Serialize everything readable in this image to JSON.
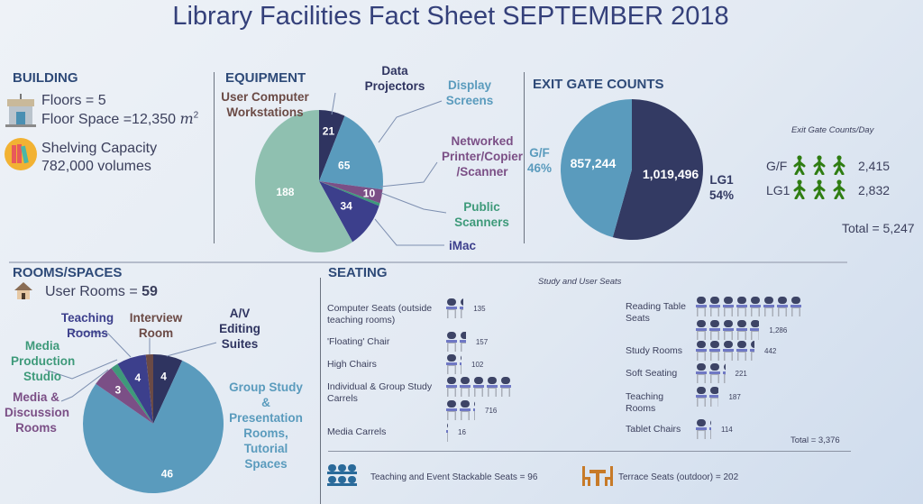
{
  "title": "Library Facilities Fact Sheet SEPTEMBER 2018",
  "building": {
    "heading": "BUILDING",
    "floors": "Floors = 5",
    "floor_space": "Floor Space =12,350 ",
    "floor_unit": "m",
    "floor_exp": "2",
    "shelving": "Shelving Capacity",
    "volumes": "782,000 volumes"
  },
  "equipment": {
    "heading": "EQUIPMENT"
  },
  "exit": {
    "heading": "EXIT GATE COUNTS",
    "per_day_title": "Exit Gate Counts/Day",
    "rows": [
      {
        "label": "G/F",
        "value": "2,415"
      },
      {
        "label": "LG1",
        "value": "2,832"
      }
    ],
    "total": "Total = 5,247",
    "gf_label": "G/F",
    "gf_pct": "46%",
    "lg1_label": "LG1",
    "lg1_pct": "54%"
  },
  "rooms": {
    "heading": "ROOMS/SPACES",
    "user_rooms": "User Rooms = ",
    "user_rooms_value": "59"
  },
  "seating": {
    "heading": "SEATING",
    "subtitle": "Study and User Seats",
    "left": [
      {
        "label": "Computer Seats (outside teaching rooms)",
        "value": 135,
        "text": "135"
      },
      {
        "label": "'Floating' Chair",
        "value": 157,
        "text": "157"
      },
      {
        "label": "High Chairs",
        "value": 102,
        "text": "102"
      },
      {
        "label": "Individual & Group Study Carrels",
        "value": 716,
        "text": "716"
      },
      {
        "label": "Media Carrels",
        "value": 16,
        "text": "16"
      }
    ],
    "right": [
      {
        "label": "Reading Table Seats",
        "value": 1286,
        "text": "1,286"
      },
      {
        "label": "Study Rooms",
        "value": 442,
        "text": "442"
      },
      {
        "label": "Soft Seating",
        "value": 221,
        "text": "221"
      },
      {
        "label": "Teaching Rooms",
        "value": 187,
        "text": "187"
      },
      {
        "label": "Tablet Chairs",
        "value": 114,
        "text": "114"
      }
    ],
    "total": "Total = 3,376",
    "stackable": "Teaching and Event Stackable Seats = 96",
    "terrace": "Terrace Seats (outdoor) = 202",
    "seats_per_icon": 100
  },
  "colors": {
    "navy": "#2f3460",
    "blue": "#5a9bbd",
    "purple": "#7b4f86",
    "green": "#3e9a7a",
    "indigo": "#3c3f8c",
    "teal": "#8fc0b0",
    "brown": "#6b4a45",
    "walker": "#2f7d12",
    "chair_top": "#3d4466",
    "chair_seat": "#6f78c4",
    "chair_leg": "#a9aeb8"
  },
  "chart_data": [
    {
      "type": "pie",
      "name": "EQUIPMENT",
      "categories": [
        "Data Projectors",
        "Display Screens",
        "Networked Printer/Copier /Scanner",
        "Public Scanners",
        "iMac",
        "User Computer Workstations"
      ],
      "values": [
        21,
        65,
        10,
        2,
        34,
        188
      ],
      "labels": [
        "21",
        "65",
        "10",
        "",
        "34",
        "188"
      ],
      "colors": [
        "#2f3460",
        "#5a9bbd",
        "#7b4f86",
        "#3e9a7a",
        "#3c3f8c",
        "#8fc0b0"
      ]
    },
    {
      "type": "pie",
      "name": "EXIT GATE COUNTS",
      "categories": [
        "LG1",
        "G/F"
      ],
      "values": [
        1019496,
        857244
      ],
      "labels": [
        "1,019,496",
        "857,244"
      ],
      "percent": [
        54,
        46
      ],
      "colors": [
        "#333a63",
        "#5a9bbd"
      ]
    },
    {
      "type": "pie",
      "name": "ROOMS/SPACES",
      "categories": [
        "A/V Editing Suites",
        "Group Study & Presentation Rooms, Tutorial Spaces",
        "Media & Discussion Rooms",
        "Media Production Studio",
        "Teaching Rooms",
        "Interview Room"
      ],
      "values": [
        4,
        46,
        3,
        1,
        4,
        1
      ],
      "labels": [
        "4",
        "46",
        "3",
        "",
        "4",
        ""
      ],
      "colors": [
        "#2f3460",
        "#5a9bbd",
        "#7b4f86",
        "#3e9a7a",
        "#3c3f8c",
        "#6b4a45"
      ]
    }
  ]
}
